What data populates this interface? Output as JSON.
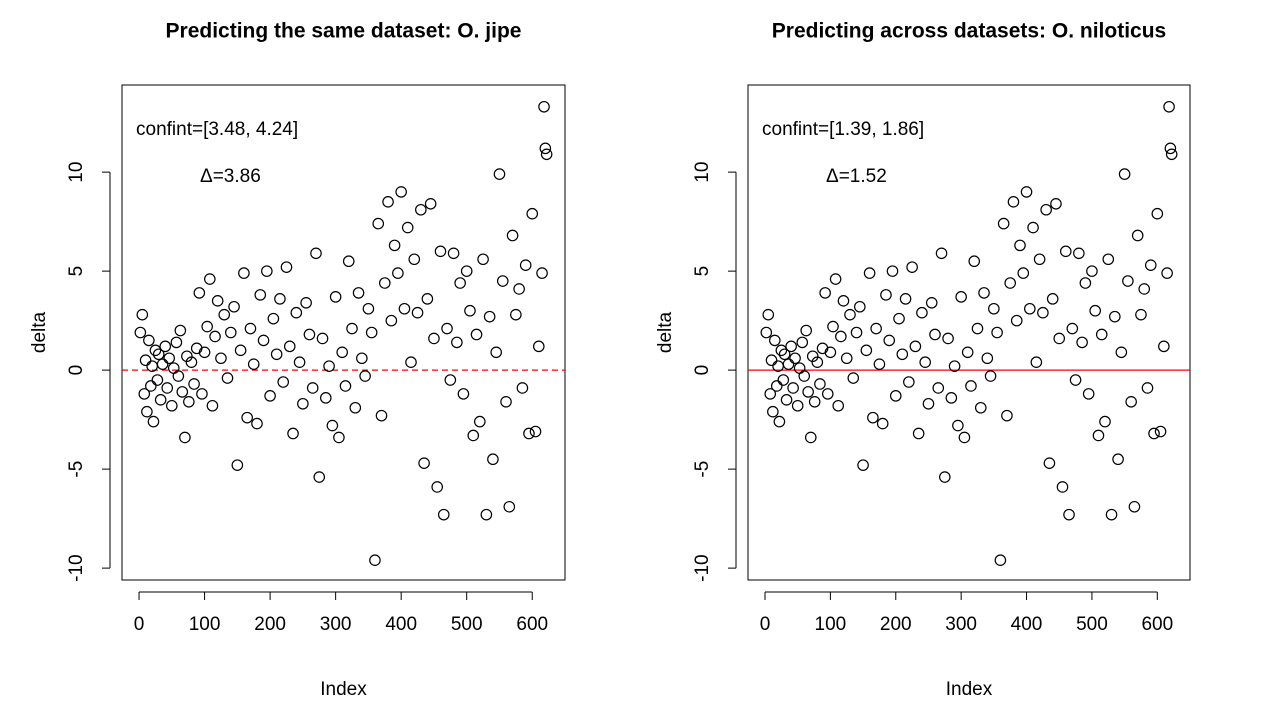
{
  "chart_data": [
    {
      "type": "scatter",
      "title": "Predicting the same dataset: O. jipe",
      "x_label": "Index",
      "y_label": "delta",
      "annotations": [
        "confint=[3.48, 4.24]",
        "Δ=3.86"
      ],
      "xlim": [
        -26,
        650
      ],
      "ylim": [
        -10.6,
        14.4
      ],
      "xticks": [
        0,
        100,
        200,
        300,
        400,
        500,
        600
      ],
      "yticks": [
        -10,
        -5,
        0,
        5,
        10
      ],
      "color": "#000000",
      "hline": {
        "value": 0,
        "color": "#ff0000",
        "dashed": true
      },
      "x": [
        2,
        5,
        8,
        10,
        12,
        15,
        18,
        20,
        22,
        25,
        28,
        30,
        33,
        36,
        40,
        43,
        46,
        50,
        53,
        57,
        60,
        63,
        66,
        70,
        73,
        76,
        80,
        84,
        88,
        92,
        96,
        100,
        104,
        108,
        112,
        116,
        120,
        125,
        130,
        135,
        140,
        145,
        150,
        155,
        160,
        165,
        170,
        175,
        180,
        185,
        190,
        195,
        200,
        205,
        210,
        215,
        220,
        225,
        230,
        235,
        240,
        245,
        250,
        255,
        260,
        265,
        270,
        275,
        280,
        285,
        290,
        295,
        300,
        305,
        310,
        315,
        320,
        325,
        330,
        335,
        340,
        345,
        350,
        355,
        360,
        365,
        370,
        375,
        380,
        385,
        390,
        395,
        400,
        405,
        410,
        415,
        420,
        425,
        430,
        435,
        440,
        445,
        450,
        455,
        460,
        465,
        470,
        475,
        480,
        485,
        490,
        495,
        500,
        505,
        510,
        515,
        520,
        525,
        530,
        535,
        540,
        545,
        550,
        555,
        560,
        565,
        570,
        575,
        580,
        585,
        590,
        595,
        600,
        605,
        610,
        615,
        618,
        620,
        622
      ],
      "values": [
        1.9,
        2.8,
        -1.2,
        0.5,
        -2.1,
        1.5,
        -0.8,
        0.2,
        -2.6,
        1.0,
        -0.5,
        0.8,
        -1.5,
        0.3,
        1.2,
        -0.9,
        0.6,
        -1.8,
        0.1,
        1.4,
        -0.3,
        2.0,
        -1.1,
        -3.4,
        0.7,
        -1.6,
        0.4,
        -0.7,
        1.1,
        3.9,
        -1.2,
        0.9,
        2.2,
        4.6,
        -1.8,
        1.7,
        3.5,
        0.6,
        2.8,
        -0.4,
        1.9,
        3.2,
        -4.8,
        1.0,
        4.9,
        -2.4,
        2.1,
        0.3,
        -2.7,
        3.8,
        1.5,
        5.0,
        -1.3,
        2.6,
        0.8,
        3.6,
        -0.6,
        5.2,
        1.2,
        -3.2,
        2.9,
        0.4,
        -1.7,
        3.4,
        1.8,
        -0.9,
        5.9,
        -5.4,
        1.6,
        -1.4,
        0.2,
        -2.8,
        3.7,
        -3.4,
        0.9,
        -0.8,
        5.5,
        2.1,
        -1.9,
        3.9,
        0.6,
        -0.3,
        3.1,
        1.9,
        -9.6,
        7.4,
        -2.3,
        4.4,
        8.5,
        2.5,
        6.3,
        4.9,
        9.0,
        3.1,
        7.2,
        0.4,
        5.6,
        2.9,
        8.1,
        -4.7,
        3.6,
        8.4,
        1.6,
        -5.9,
        6.0,
        -7.3,
        2.1,
        -0.5,
        5.9,
        1.4,
        4.4,
        -1.2,
        5.0,
        3.0,
        -3.3,
        1.8,
        -2.6,
        5.6,
        -7.3,
        2.7,
        -4.5,
        0.9,
        9.9,
        4.5,
        -1.6,
        -6.9,
        6.8,
        2.8,
        4.1,
        -0.9,
        5.3,
        -3.2,
        7.9,
        -3.1,
        1.2,
        4.9,
        13.3,
        11.2,
        10.9
      ]
    },
    {
      "type": "scatter",
      "title": "Predicting across datasets: O. niloticus",
      "x_label": "Index",
      "y_label": "delta",
      "annotations": [
        "confint=[1.39, 1.86]",
        "Δ=1.52"
      ],
      "xlim": [
        -26,
        650
      ],
      "ylim": [
        -10.6,
        14.4
      ],
      "xticks": [
        0,
        100,
        200,
        300,
        400,
        500,
        600
      ],
      "yticks": [
        -10,
        -5,
        0,
        5,
        10
      ],
      "color": "#000000",
      "hline": {
        "value": 0,
        "color": "#ff0000",
        "dashed": false
      },
      "x": [
        2,
        5,
        8,
        10,
        12,
        15,
        18,
        20,
        22,
        25,
        28,
        30,
        33,
        36,
        40,
        43,
        46,
        50,
        53,
        57,
        60,
        63,
        66,
        70,
        73,
        76,
        80,
        84,
        88,
        92,
        96,
        100,
        104,
        108,
        112,
        116,
        120,
        125,
        130,
        135,
        140,
        145,
        150,
        155,
        160,
        165,
        170,
        175,
        180,
        185,
        190,
        195,
        200,
        205,
        210,
        215,
        220,
        225,
        230,
        235,
        240,
        245,
        250,
        255,
        260,
        265,
        270,
        275,
        280,
        285,
        290,
        295,
        300,
        305,
        310,
        315,
        320,
        325,
        330,
        335,
        340,
        345,
        350,
        355,
        360,
        365,
        370,
        375,
        380,
        385,
        390,
        395,
        400,
        405,
        410,
        415,
        420,
        425,
        430,
        435,
        440,
        445,
        450,
        455,
        460,
        465,
        470,
        475,
        480,
        485,
        490,
        495,
        500,
        505,
        510,
        515,
        520,
        525,
        530,
        535,
        540,
        545,
        550,
        555,
        560,
        565,
        570,
        575,
        580,
        585,
        590,
        595,
        600,
        605,
        610,
        615,
        618,
        620,
        622
      ],
      "values": [
        1.9,
        2.8,
        -1.2,
        0.5,
        -2.1,
        1.5,
        -0.8,
        0.2,
        -2.6,
        1.0,
        -0.5,
        0.8,
        -1.5,
        0.3,
        1.2,
        -0.9,
        0.6,
        -1.8,
        0.1,
        1.4,
        -0.3,
        2.0,
        -1.1,
        -3.4,
        0.7,
        -1.6,
        0.4,
        -0.7,
        1.1,
        3.9,
        -1.2,
        0.9,
        2.2,
        4.6,
        -1.8,
        1.7,
        3.5,
        0.6,
        2.8,
        -0.4,
        1.9,
        3.2,
        -4.8,
        1.0,
        4.9,
        -2.4,
        2.1,
        0.3,
        -2.7,
        3.8,
        1.5,
        5.0,
        -1.3,
        2.6,
        0.8,
        3.6,
        -0.6,
        5.2,
        1.2,
        -3.2,
        2.9,
        0.4,
        -1.7,
        3.4,
        1.8,
        -0.9,
        5.9,
        -5.4,
        1.6,
        -1.4,
        0.2,
        -2.8,
        3.7,
        -3.4,
        0.9,
        -0.8,
        5.5,
        2.1,
        -1.9,
        3.9,
        0.6,
        -0.3,
        3.1,
        1.9,
        -9.6,
        7.4,
        -2.3,
        4.4,
        8.5,
        2.5,
        6.3,
        4.9,
        9.0,
        3.1,
        7.2,
        0.4,
        5.6,
        2.9,
        8.1,
        -4.7,
        3.6,
        8.4,
        1.6,
        -5.9,
        6.0,
        -7.3,
        2.1,
        -0.5,
        5.9,
        1.4,
        4.4,
        -1.2,
        5.0,
        3.0,
        -3.3,
        1.8,
        -2.6,
        5.6,
        -7.3,
        2.7,
        -4.5,
        0.9,
        9.9,
        4.5,
        -1.6,
        -6.9,
        6.8,
        2.8,
        4.1,
        -0.9,
        5.3,
        -3.2,
        7.9,
        -3.1,
        1.2,
        4.9,
        13.3,
        11.2,
        10.9
      ]
    }
  ]
}
